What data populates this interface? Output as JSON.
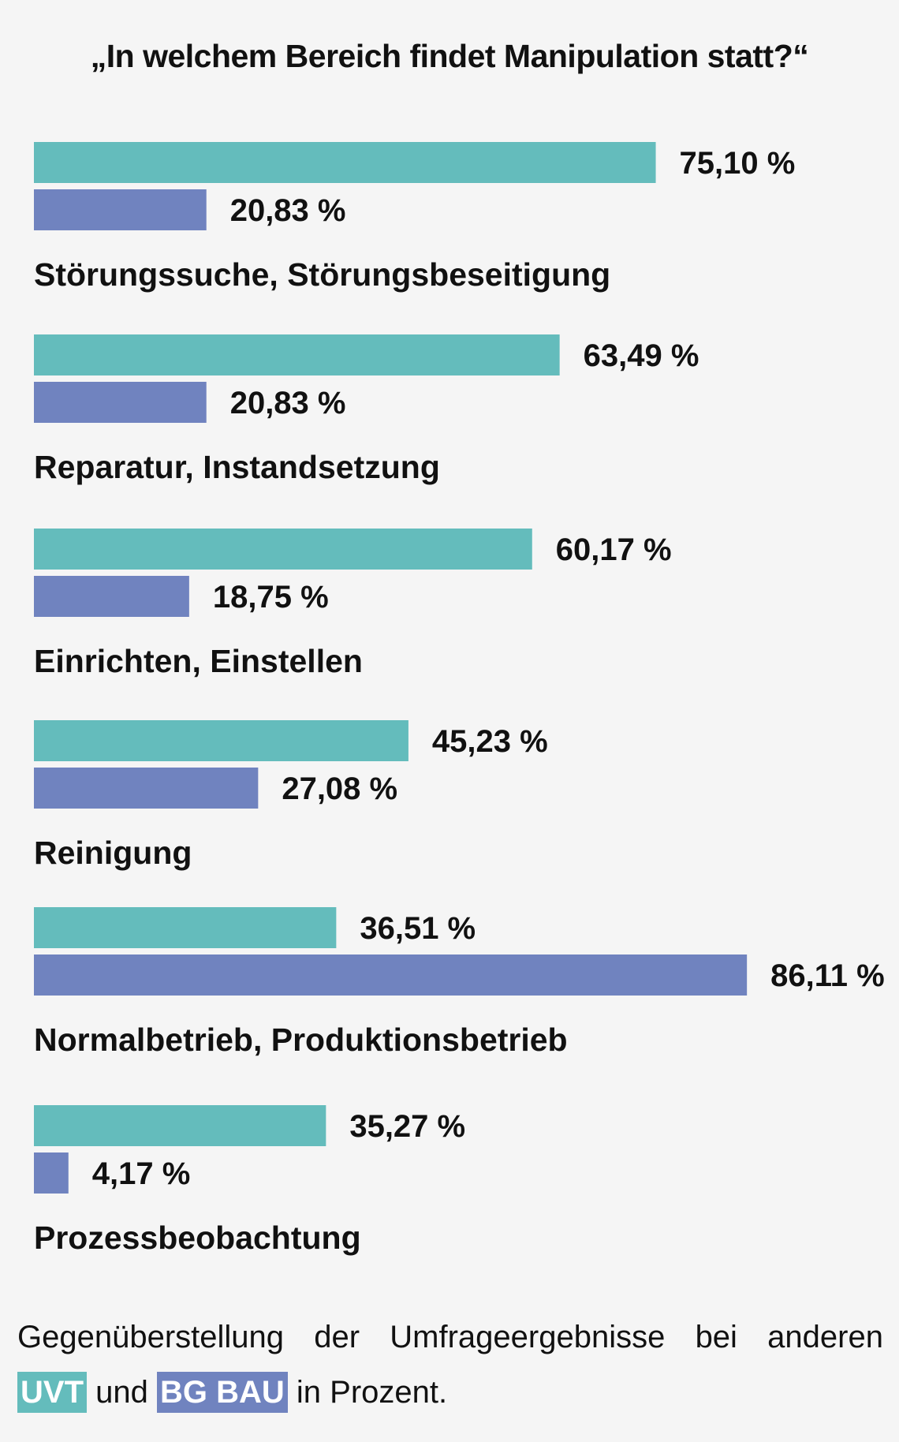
{
  "chart_data": {
    "type": "bar",
    "orientation": "horizontal",
    "title": "„In welchem Bereich findet Manipulation statt?“",
    "categories": [
      "Störungssuche, Störungsbeseitigung",
      "Reparatur, Instandsetzung",
      "Einrichten, Einstellen",
      "Reinigung",
      "Normalbetrieb, Produktionsbetrieb",
      "Prozessbeobachtung"
    ],
    "series": [
      {
        "name": "UVT",
        "color": "#64bcbc",
        "values": [
          75.1,
          63.49,
          60.17,
          45.23,
          36.51,
          35.27
        ],
        "labels": [
          "75,10 %",
          "63,49 %",
          "60,17 %",
          "45,23 %",
          "36,51 %",
          "35,27 %"
        ]
      },
      {
        "name": "BG BAU",
        "color": "#7083bf",
        "values": [
          20.83,
          20.83,
          18.75,
          27.08,
          86.11,
          4.17
        ],
        "labels": [
          "20,83 %",
          "20,83 %",
          "18,75 %",
          "27,08 %",
          "86,11 %",
          "4,17 %"
        ]
      }
    ],
    "unit": "%",
    "xlim": [
      0,
      100
    ],
    "grid": false
  },
  "caption": {
    "line1_words": [
      "Gegenüberstellung",
      "der",
      "Umfrageergebnisse",
      "bei",
      "anderen"
    ],
    "badge_uvt": "UVT",
    "connector": "und",
    "badge_bgbau": "BG BAU",
    "suffix": "in Prozent."
  }
}
